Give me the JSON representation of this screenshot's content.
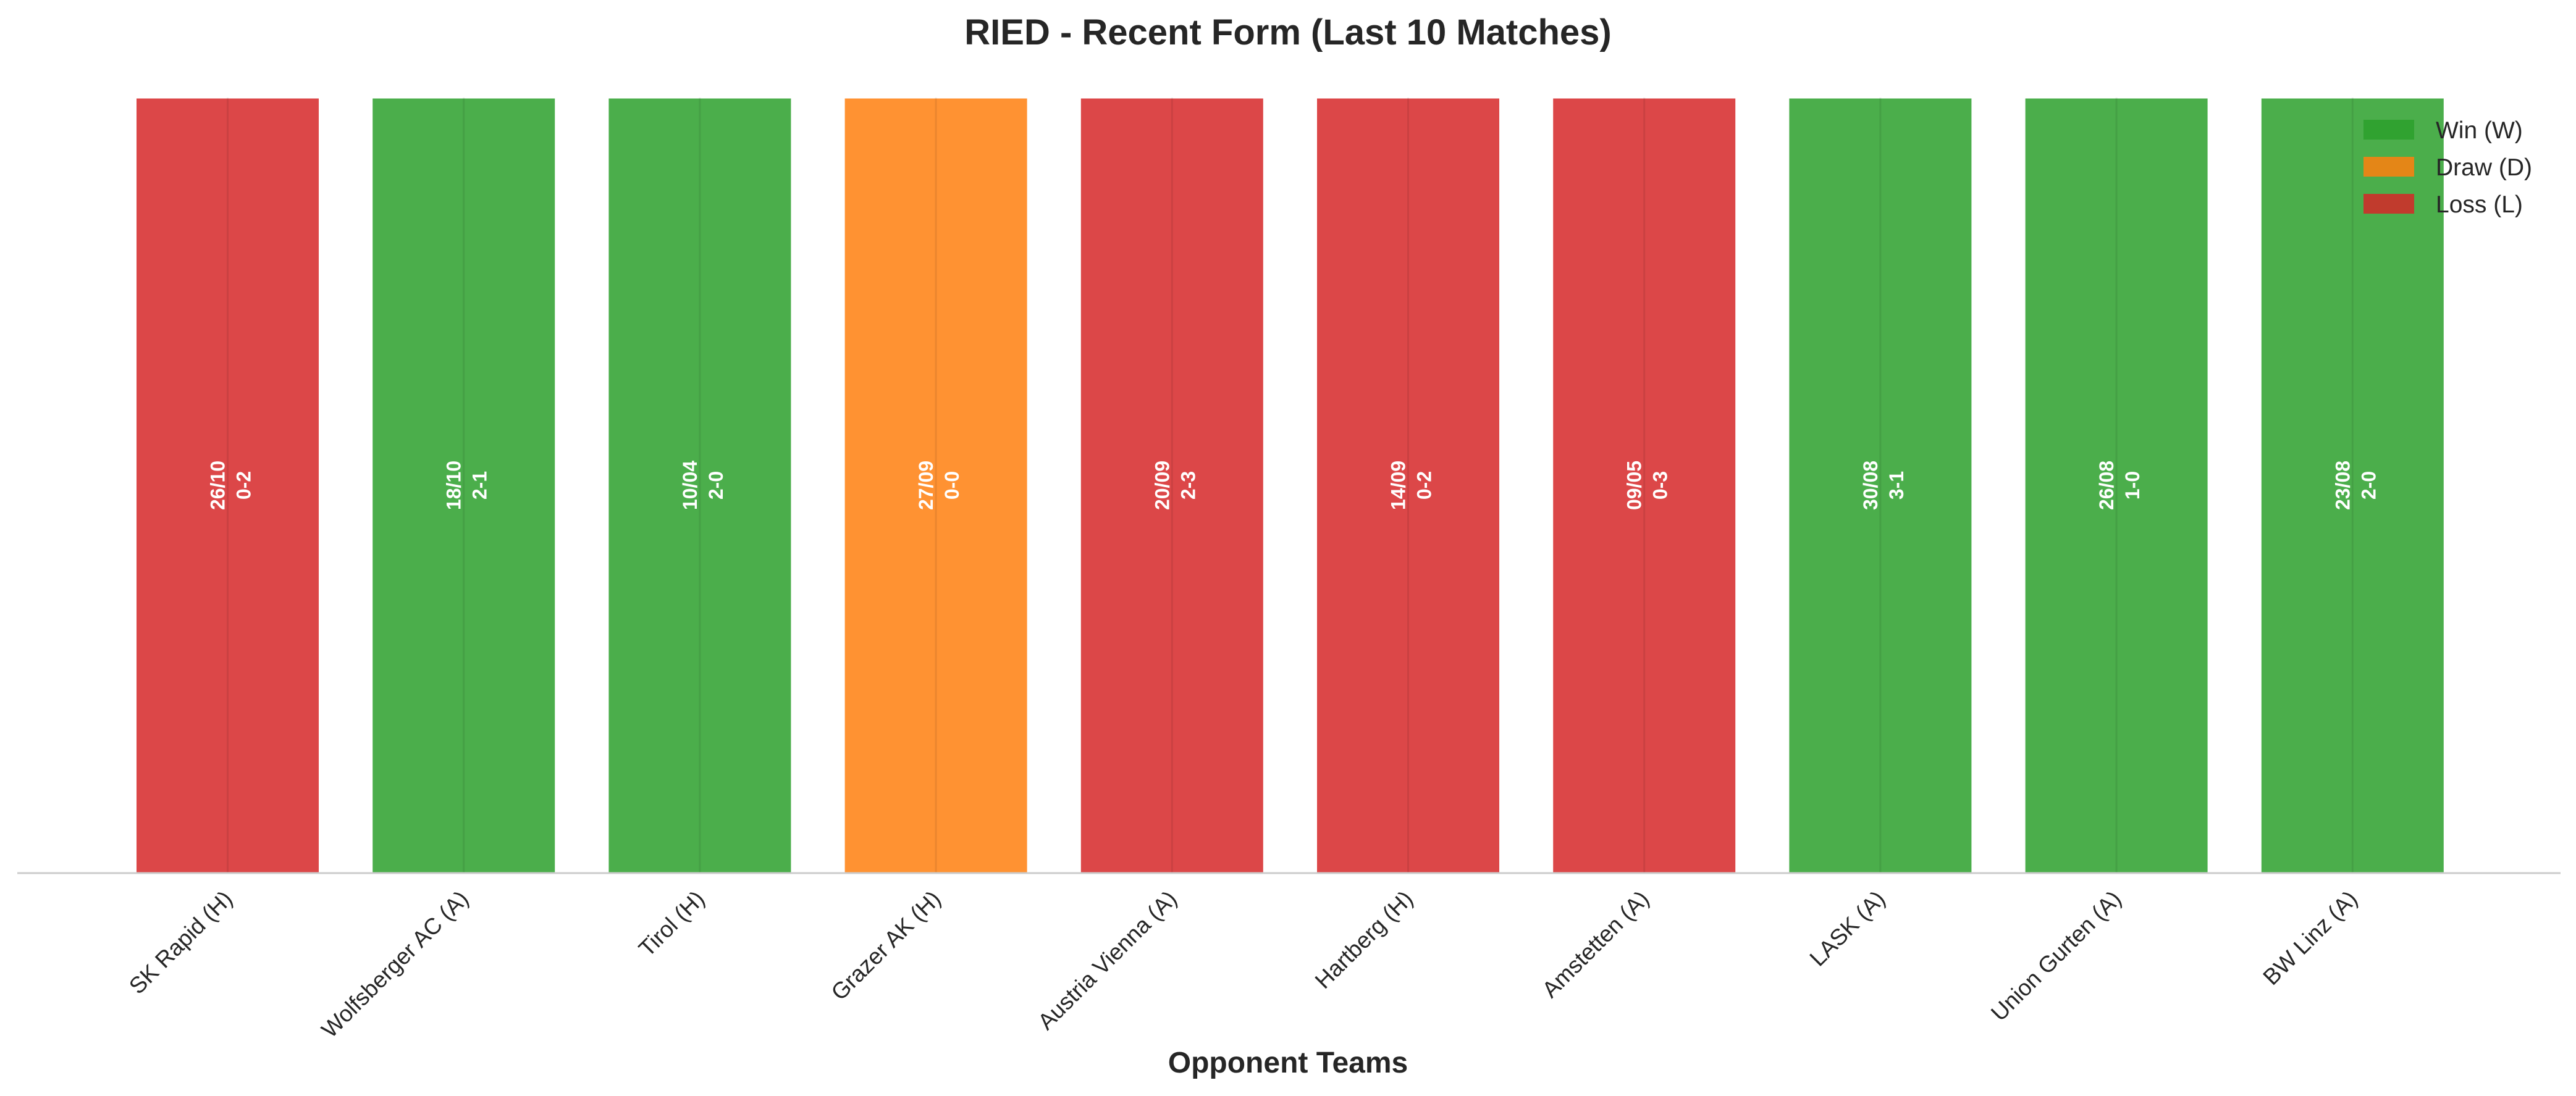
{
  "chart_data": {
    "type": "bar",
    "title": "RIED - Recent Form (Last 10 Matches)",
    "xlabel": "Opponent Teams",
    "ylabel": "",
    "ylim": [
      0,
      1
    ],
    "grid": false,
    "legend_position": "top-right",
    "categories": [
      "SK Rapid (H)",
      "Wolfsberger AC (A)",
      "Tirol (H)",
      "Grazer AK (H)",
      "Austria Vienna (A)",
      "Hartberg (H)",
      "Amstetten (A)",
      "LASK (A)",
      "Union Gurten (A)",
      "BW Linz (A)"
    ],
    "values": [
      1,
      1,
      1,
      1,
      1,
      1,
      1,
      1,
      1,
      1
    ],
    "results": [
      "L",
      "W",
      "W",
      "D",
      "L",
      "L",
      "L",
      "W",
      "W",
      "W"
    ],
    "dates": [
      "26/10",
      "18/10",
      "10/04",
      "27/09",
      "20/09",
      "14/09",
      "09/05",
      "30/08",
      "26/08",
      "23/08"
    ],
    "scores": [
      "0-2",
      "2-1",
      "2-0",
      "0-0",
      "2-3",
      "0-2",
      "0-3",
      "3-1",
      "1-0",
      "2-0"
    ],
    "legend": [
      {
        "key": "W",
        "label": "Win (W)",
        "color": "#2ca02c"
      },
      {
        "key": "D",
        "label": "Draw (D)",
        "color": "#ff7f0e"
      },
      {
        "key": "L",
        "label": "Loss (L)",
        "color": "#d62728"
      }
    ],
    "bar_opacity": 0.85
  }
}
